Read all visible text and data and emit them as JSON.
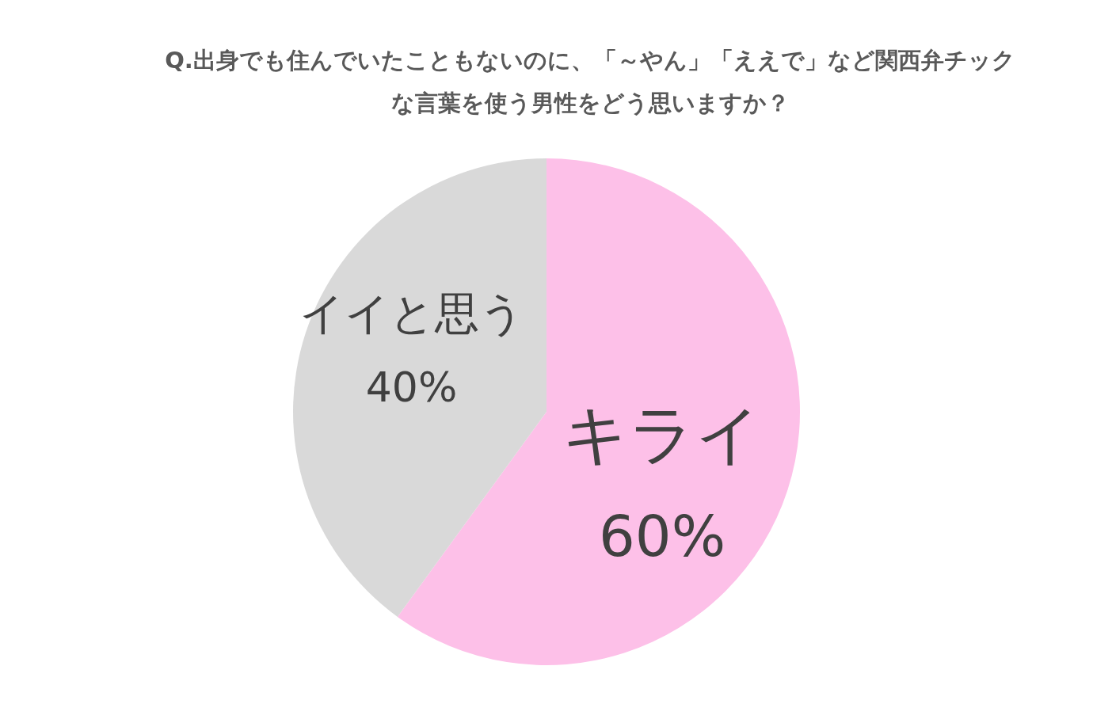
{
  "chart_data": {
    "type": "pie",
    "title": "Q.出身でも住んでいたこともないのに、「～やん」「ええで」など関西弁チックな言葉を使う男性をどう思いますか？",
    "categories": [
      "キライ",
      "イイと思う"
    ],
    "values": [
      60,
      40
    ],
    "colors": [
      "#fdc0e8",
      "#d9d9d9"
    ],
    "value_labels": [
      "60%",
      "40%"
    ]
  }
}
